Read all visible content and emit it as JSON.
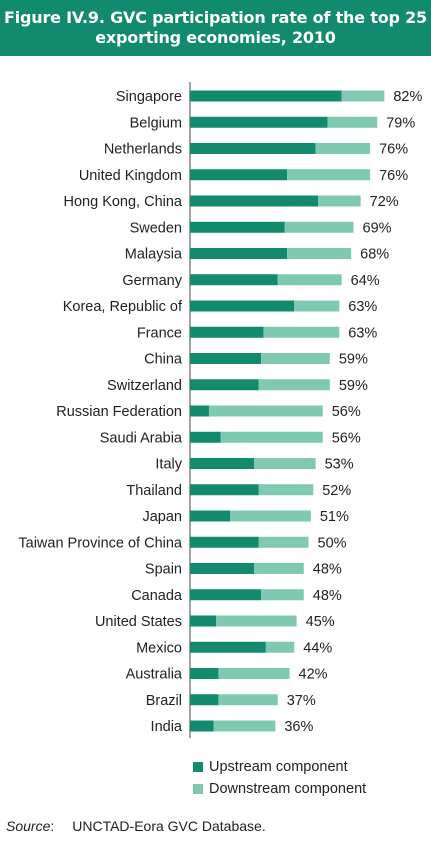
{
  "title_line1": "Figure IV.9. GVC participation rate of the top 25",
  "title_line2": "exporting economies, 2010",
  "legend": {
    "upstream": "Upstream component",
    "downstream": "Downstream component"
  },
  "source": {
    "label": "Source",
    "text": "UNCTAD-Eora GVC Database."
  },
  "colors": {
    "upstream": "#128a6d",
    "downstream": "#7fc8b2",
    "title_bg": "#128a6d"
  },
  "chart_data": {
    "type": "bar",
    "orientation": "horizontal",
    "stacked": true,
    "categories": [
      "Singapore",
      "Belgium",
      "Netherlands",
      "United Kingdom",
      "Hong Kong, China",
      "Sweden",
      "Malaysia",
      "Germany",
      "Korea, Republic of",
      "France",
      "China",
      "Switzerland",
      "Russian Federation",
      "Saudi Arabia",
      "Italy",
      "Thailand",
      "Japan",
      "Taiwan Province of China",
      "Spain",
      "Canada",
      "United States",
      "Mexico",
      "Australia",
      "Brazil",
      "India"
    ],
    "series": [
      {
        "name": "Upstream component",
        "values": [
          64,
          58,
          53,
          41,
          54,
          40,
          41,
          37,
          44,
          31,
          30,
          29,
          8,
          13,
          27,
          29,
          17,
          29,
          27,
          30,
          11,
          32,
          12,
          12,
          10
        ]
      },
      {
        "name": "Downstream component",
        "values": [
          18,
          21,
          23,
          35,
          18,
          29,
          27,
          27,
          19,
          32,
          29,
          30,
          48,
          43,
          26,
          23,
          34,
          21,
          21,
          18,
          34,
          12,
          30,
          25,
          26
        ]
      }
    ],
    "totals_labels": [
      "82%",
      "79%",
      "76%",
      "76%",
      "72%",
      "69%",
      "68%",
      "64%",
      "63%",
      "63%",
      "59%",
      "59%",
      "56%",
      "56%",
      "53%",
      "52%",
      "51%",
      "50%",
      "48%",
      "48%",
      "45%",
      "44%",
      "42%",
      "37%",
      "36%"
    ],
    "xlim": [
      0,
      100
    ],
    "grid": false,
    "legend_position": "bottom"
  }
}
